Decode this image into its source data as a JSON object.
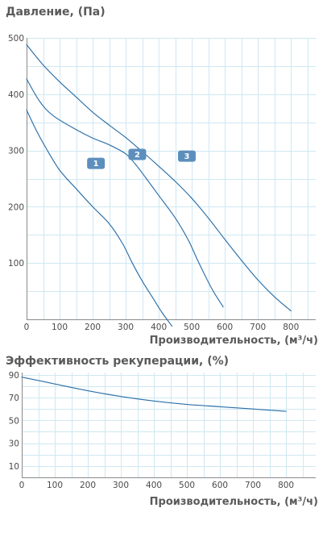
{
  "chart_data": [
    {
      "type": "line",
      "title": "Давление, (Па)",
      "xlabel": "Производительность, (м³/ч)",
      "ylabel": "",
      "xlim": [
        0,
        875
      ],
      "ylim": [
        0,
        500
      ],
      "x_ticks": [
        0,
        100,
        200,
        300,
        400,
        500,
        600,
        700,
        800
      ],
      "y_ticks": [
        100,
        200,
        300,
        400,
        500
      ],
      "grid": true,
      "series": [
        {
          "name": "1",
          "x": [
            0,
            30,
            60,
            100,
            150,
            200,
            250,
            290,
            320,
            350,
            380,
            410,
            440
          ],
          "y": [
            372,
            335,
            303,
            265,
            232,
            200,
            170,
            135,
            100,
            68,
            40,
            12,
            -12
          ]
        },
        {
          "name": "2",
          "x": [
            0,
            40,
            80,
            150,
            200,
            250,
            300,
            330,
            360,
            400,
            450,
            490,
            520,
            560,
            595
          ],
          "y": [
            427,
            387,
            362,
            337,
            322,
            310,
            294,
            275,
            252,
            220,
            180,
            140,
            102,
            55,
            22
          ]
        },
        {
          "name": "3",
          "x": [
            0,
            50,
            100,
            150,
            200,
            250,
            300,
            350,
            400,
            450,
            500,
            550,
            600,
            650,
            700,
            750,
            800
          ],
          "y": [
            488,
            452,
            422,
            395,
            368,
            345,
            323,
            298,
            272,
            245,
            215,
            180,
            142,
            105,
            70,
            40,
            15
          ]
        }
      ],
      "badges": [
        "1",
        "2",
        "3"
      ],
      "badge_data_positions": [
        [
          210,
          277
        ],
        [
          335,
          293
        ],
        [
          485,
          290
        ]
      ],
      "colors": {
        "series": "#2b6fa8",
        "badge": "#5d8fbd",
        "grid": "#cfe8f2",
        "axis": "#8a8a8a",
        "text": "#5a5a5a"
      }
    },
    {
      "type": "line",
      "title": "Эффективность рекуперации, (%)",
      "xlabel": "Производительность, (м³/ч)",
      "ylabel": "",
      "xlim": [
        0,
        890
      ],
      "ylim": [
        0,
        92
      ],
      "x_ticks": [
        0,
        100,
        200,
        300,
        400,
        500,
        600,
        700,
        800
      ],
      "y_ticks": [
        10,
        30,
        50,
        70,
        90
      ],
      "grid": true,
      "series": [
        {
          "name": "",
          "x": [
            0,
            100,
            200,
            300,
            400,
            500,
            600,
            700,
            800
          ],
          "y": [
            88,
            82,
            76,
            71,
            67,
            64,
            62,
            60,
            58
          ]
        }
      ],
      "colors": {
        "series": "#2b6fa8",
        "grid": "#cfe8f2",
        "axis": "#8a8a8a",
        "text": "#5a5a5a"
      }
    }
  ]
}
